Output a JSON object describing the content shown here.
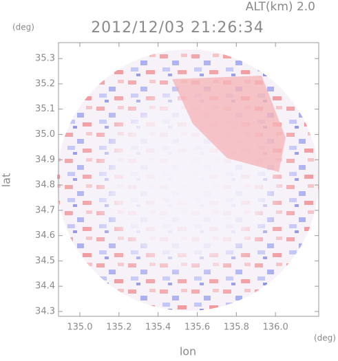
{
  "chart_data": {
    "type": "radar-map",
    "title": "2012/12/03 21:26:34",
    "subtitle": "ALT(km)  2.0",
    "x_label": "lon",
    "y_label": "lat",
    "x_unit": "(deg)",
    "y_unit": "(deg)",
    "xlim": [
      134.891,
      136.221
    ],
    "ylim": [
      34.281,
      35.363
    ],
    "xticks": [
      {
        "value": 135,
        "label": "135.0"
      },
      135.2,
      135.4,
      135.6,
      135.8,
      {
        "value": 136,
        "label": "136.0"
      }
    ],
    "yticks": [
      34.3,
      34.4,
      34.5,
      34.6,
      34.7,
      34.8,
      34.9,
      {
        "value": 35,
        "label": "35.0"
      },
      35.1,
      35.2,
      35.3
    ]
  }
}
